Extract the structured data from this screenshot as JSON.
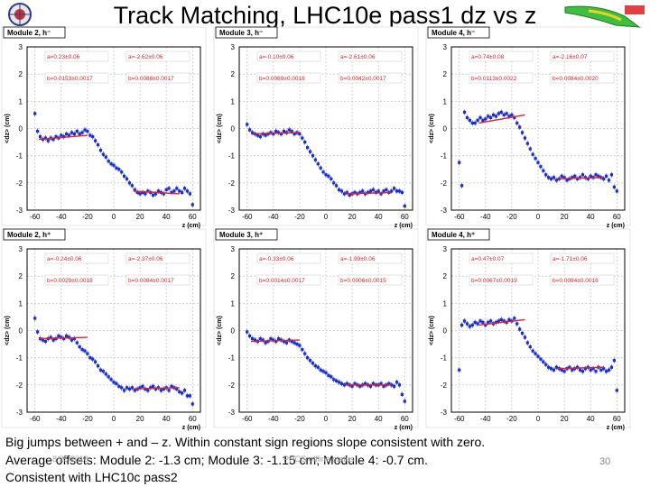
{
  "title": "Track Matching, LHC10e pass1 dz vs z",
  "colors": {
    "markers": "#1a2ecc",
    "fit": "#e0202a",
    "grid": "#c8c8c8",
    "label_bg": "#ffffff"
  },
  "footer": {
    "line1": "Big jumps between + and – z. Within constant sign regions slope consistent with zero.",
    "line2": "Average offsets: Module 2: -1.3 cm; Module 3: -1.15 cm; Module 4: -0.7 cm.",
    "line3": "Consistent with LHC10c pass2",
    "date": "8/25/2010",
    "conference": "PHOS offline status",
    "page": "30"
  },
  "chart_data": [
    {
      "type": "scatter",
      "title": "Module 2, h⁻",
      "xlabel": "z (cm)",
      "ylabel": "<dz> (cm)",
      "xlim": [
        -66,
        66
      ],
      "ylim": [
        -3,
        3
      ],
      "xticks": [
        "-60",
        "-40",
        "-20",
        "0",
        "20",
        "40",
        "60"
      ],
      "yticks": [
        "-3",
        "-2",
        "-1",
        "0",
        "1",
        "2",
        "3"
      ],
      "fit_params": [
        "a=0.23±0.06",
        "a=-2.62±0.06",
        "b=0.0153±0.0017",
        "b=0.0088±0.0017"
      ],
      "fit_lines": [
        {
          "x": [
            -57,
            -20
          ],
          "y": [
            -0.4,
            -0.25
          ]
        },
        {
          "x": [
            15,
            50
          ],
          "y": [
            -2.3,
            -2.4
          ]
        }
      ],
      "series": [
        {
          "name": "data",
          "x": [
            -60,
            -58,
            -56,
            -54,
            -52,
            -50,
            -48,
            -46,
            -44,
            -42,
            -40,
            -38,
            -36,
            -34,
            -32,
            -30,
            -28,
            -26,
            -24,
            -22,
            -20,
            -18,
            -16,
            -14,
            -12,
            -10,
            -8,
            -6,
            -4,
            -2,
            0,
            2,
            4,
            6,
            8,
            10,
            12,
            14,
            16,
            18,
            20,
            22,
            24,
            26,
            28,
            30,
            32,
            34,
            36,
            38,
            40,
            42,
            44,
            46,
            48,
            50,
            52,
            54,
            56,
            58,
            60
          ],
          "y": [
            0.55,
            -0.1,
            -0.3,
            -0.4,
            -0.35,
            -0.45,
            -0.35,
            -0.4,
            -0.3,
            -0.35,
            -0.25,
            -0.3,
            -0.2,
            -0.25,
            -0.15,
            -0.2,
            -0.1,
            -0.2,
            -0.15,
            -0.05,
            -0.1,
            -0.25,
            -0.3,
            -0.45,
            -0.6,
            -0.8,
            -0.95,
            -1.05,
            -1.2,
            -1.3,
            -1.35,
            -1.45,
            -1.5,
            -1.6,
            -1.75,
            -1.85,
            -2.0,
            -2.1,
            -2.25,
            -2.35,
            -2.4,
            -2.35,
            -2.4,
            -2.3,
            -2.35,
            -2.45,
            -2.4,
            -2.3,
            -2.35,
            -2.4,
            -2.25,
            -2.2,
            -2.35,
            -2.3,
            -2.2,
            -2.3,
            -2.35,
            -2.2,
            -2.3,
            -2.4,
            -2.8
          ]
        }
      ]
    },
    {
      "type": "scatter",
      "title": "Module 3, h⁻",
      "xlabel": "z (cm)",
      "ylabel": "<dz> (cm)",
      "xlim": [
        -66,
        66
      ],
      "ylim": [
        -3,
        3
      ],
      "xticks": [
        "-60",
        "-40",
        "-20",
        "0",
        "20",
        "40",
        "60"
      ],
      "yticks": [
        "-3",
        "-2",
        "-1",
        "0",
        "1",
        "2",
        "3"
      ],
      "fit_params": [
        "a=-0.10±0.06",
        "a=-2.61±0.06",
        "b=0.0069±0.0018",
        "b=0.0042±0.0017"
      ],
      "fit_lines": [
        {
          "x": [
            -57,
            -20
          ],
          "y": [
            -0.2,
            -0.15
          ]
        },
        {
          "x": [
            15,
            50
          ],
          "y": [
            -2.4,
            -2.35
          ]
        }
      ],
      "series": [
        {
          "name": "data",
          "x": [
            -60,
            -58,
            -56,
            -54,
            -52,
            -50,
            -48,
            -46,
            -44,
            -42,
            -40,
            -38,
            -36,
            -34,
            -32,
            -30,
            -28,
            -26,
            -24,
            -22,
            -20,
            -18,
            -16,
            -14,
            -12,
            -10,
            -8,
            -6,
            -4,
            -2,
            0,
            2,
            4,
            6,
            8,
            10,
            12,
            14,
            16,
            18,
            20,
            22,
            24,
            26,
            28,
            30,
            32,
            34,
            36,
            38,
            40,
            42,
            44,
            46,
            48,
            50,
            52,
            54,
            56,
            58,
            60
          ],
          "y": [
            0.15,
            -0.05,
            -0.15,
            -0.2,
            -0.25,
            -0.3,
            -0.2,
            -0.25,
            -0.2,
            -0.15,
            -0.2,
            -0.1,
            -0.15,
            -0.2,
            -0.1,
            -0.15,
            -0.05,
            -0.1,
            -0.2,
            -0.15,
            -0.2,
            -0.35,
            -0.5,
            -0.7,
            -0.85,
            -1.0,
            -1.15,
            -1.3,
            -1.45,
            -1.6,
            -1.7,
            -1.75,
            -1.85,
            -2.0,
            -2.1,
            -2.25,
            -2.3,
            -2.4,
            -2.35,
            -2.45,
            -2.4,
            -2.35,
            -2.4,
            -2.35,
            -2.3,
            -2.4,
            -2.35,
            -2.3,
            -2.25,
            -2.35,
            -2.3,
            -2.4,
            -2.3,
            -2.25,
            -2.35,
            -2.3,
            -2.2,
            -2.3,
            -2.3,
            -2.35,
            -2.85
          ]
        }
      ]
    },
    {
      "type": "scatter",
      "title": "Module 4, h⁻",
      "xlabel": "z (cm)",
      "ylabel": "<dz> (cm)",
      "xlim": [
        -66,
        66
      ],
      "ylim": [
        -3,
        3
      ],
      "xticks": [
        "-60",
        "-40",
        "-20",
        "0",
        "20",
        "40",
        "60"
      ],
      "yticks": [
        "-3",
        "-2",
        "-1",
        "0",
        "1",
        "2",
        "3"
      ],
      "fit_params": [
        "a=0.74±0.08",
        "a=-2.16±0.07",
        "b=0.0113±0.0022",
        "b=0.0084±0.0020"
      ],
      "fit_lines": [
        {
          "x": [
            -45,
            -10
          ],
          "y": [
            0.2,
            0.5
          ]
        },
        {
          "x": [
            15,
            50
          ],
          "y": [
            -1.85,
            -1.8
          ]
        }
      ],
      "series": [
        {
          "name": "data",
          "x": [
            -60,
            -58,
            -56,
            -54,
            -52,
            -50,
            -48,
            -46,
            -44,
            -42,
            -40,
            -38,
            -36,
            -34,
            -32,
            -30,
            -28,
            -26,
            -24,
            -22,
            -20,
            -18,
            -16,
            -14,
            -12,
            -10,
            -8,
            -6,
            -4,
            -2,
            0,
            2,
            4,
            6,
            8,
            10,
            12,
            14,
            16,
            18,
            20,
            22,
            24,
            26,
            28,
            30,
            32,
            34,
            36,
            38,
            40,
            42,
            44,
            46,
            48,
            50,
            52,
            54,
            56,
            58,
            60
          ],
          "y": [
            -1.25,
            -2.1,
            0.6,
            0.4,
            0.3,
            0.2,
            0.2,
            0.3,
            0.4,
            0.3,
            0.35,
            0.45,
            0.4,
            0.5,
            0.45,
            0.55,
            0.6,
            0.5,
            0.55,
            0.45,
            0.5,
            0.4,
            0.2,
            0.05,
            -0.15,
            -0.35,
            -0.55,
            -0.75,
            -0.95,
            -1.1,
            -1.25,
            -1.4,
            -1.55,
            -1.7,
            -1.8,
            -1.85,
            -1.8,
            -1.9,
            -1.85,
            -1.75,
            -1.8,
            -1.9,
            -1.85,
            -1.8,
            -1.75,
            -1.85,
            -1.8,
            -1.7,
            -1.8,
            -1.85,
            -1.75,
            -1.8,
            -1.7,
            -1.75,
            -1.8,
            -1.85,
            -1.75,
            -1.9,
            -1.7,
            -2.15,
            -2.3
          ]
        }
      ]
    },
    {
      "type": "scatter",
      "title": "Module 2, h⁺",
      "xlabel": "z (cm)",
      "ylabel": "<dz> (cm)",
      "xlim": [
        -66,
        66
      ],
      "ylim": [
        -3,
        3
      ],
      "xticks": [
        "-60",
        "-40",
        "-20",
        "0",
        "20",
        "40",
        "60"
      ],
      "yticks": [
        "-3",
        "-2",
        "-1",
        "0",
        "1",
        "2",
        "3"
      ],
      "fit_params": [
        "a=-0.24±0.06",
        "a=-2.37±0.06",
        "b=0.0029±0.0018",
        "b=0.0084±0.0017"
      ],
      "fit_lines": [
        {
          "x": [
            -57,
            -20
          ],
          "y": [
            -0.3,
            -0.25
          ]
        },
        {
          "x": [
            15,
            50
          ],
          "y": [
            -2.15,
            -2.1
          ]
        }
      ],
      "series": [
        {
          "name": "data",
          "x": [
            -60,
            -58,
            -56,
            -54,
            -52,
            -50,
            -48,
            -46,
            -44,
            -42,
            -40,
            -38,
            -36,
            -34,
            -32,
            -30,
            -28,
            -26,
            -24,
            -22,
            -20,
            -18,
            -16,
            -14,
            -12,
            -10,
            -8,
            -6,
            -4,
            -2,
            0,
            2,
            4,
            6,
            8,
            10,
            12,
            14,
            16,
            18,
            20,
            22,
            24,
            26,
            28,
            30,
            32,
            34,
            36,
            38,
            40,
            42,
            44,
            46,
            48,
            50,
            52,
            54,
            56,
            58,
            60
          ],
          "y": [
            0.45,
            -0.05,
            -0.3,
            -0.35,
            -0.4,
            -0.3,
            -0.25,
            -0.35,
            -0.3,
            -0.2,
            -0.25,
            -0.3,
            -0.2,
            -0.25,
            -0.35,
            -0.3,
            -0.45,
            -0.6,
            -0.7,
            -0.75,
            -0.85,
            -1.0,
            -1.05,
            -1.15,
            -1.3,
            -1.45,
            -1.5,
            -1.6,
            -1.7,
            -1.8,
            -1.9,
            -1.95,
            -2.05,
            -2.1,
            -2.2,
            -2.1,
            -2.15,
            -2.1,
            -2.2,
            -2.15,
            -2.1,
            -2.05,
            -2.15,
            -2.2,
            -2.1,
            -2.05,
            -2.15,
            -2.1,
            -2.2,
            -2.15,
            -2.1,
            -2.2,
            -2.05,
            -2.1,
            -2.15,
            -2.25,
            -2.3,
            -2.2,
            -2.4,
            -2.4,
            -2.7
          ]
        }
      ]
    },
    {
      "type": "scatter",
      "title": "Module 3, h⁺",
      "xlabel": "z (cm)",
      "ylabel": "<dz> (cm)",
      "xlim": [
        -66,
        66
      ],
      "ylim": [
        -3,
        3
      ],
      "xticks": [
        "-60",
        "-40",
        "-20",
        "0",
        "20",
        "40",
        "60"
      ],
      "yticks": [
        "-3",
        "-2",
        "-1",
        "0",
        "1",
        "2",
        "3"
      ],
      "fit_params": [
        "a=-0.33±0.06",
        "a=-1.99±0.06",
        "b=0.0014±0.0017",
        "b=0.0006±0.0015"
      ],
      "fit_lines": [
        {
          "x": [
            -57,
            -20
          ],
          "y": [
            -0.4,
            -0.35
          ]
        },
        {
          "x": [
            15,
            50
          ],
          "y": [
            -2.0,
            -2.0
          ]
        }
      ],
      "series": [
        {
          "name": "data",
          "x": [
            -60,
            -58,
            -56,
            -54,
            -52,
            -50,
            -48,
            -46,
            -44,
            -42,
            -40,
            -38,
            -36,
            -34,
            -32,
            -30,
            -28,
            -26,
            -24,
            -22,
            -20,
            -18,
            -16,
            -14,
            -12,
            -10,
            -8,
            -6,
            -4,
            -2,
            0,
            2,
            4,
            6,
            8,
            10,
            12,
            14,
            16,
            18,
            20,
            22,
            24,
            26,
            28,
            30,
            32,
            34,
            36,
            38,
            40,
            42,
            44,
            46,
            48,
            50,
            52,
            54,
            56,
            58,
            60
          ],
          "y": [
            -0.05,
            -0.2,
            -0.3,
            -0.35,
            -0.4,
            -0.3,
            -0.35,
            -0.45,
            -0.4,
            -0.3,
            -0.35,
            -0.4,
            -0.3,
            -0.35,
            -0.4,
            -0.45,
            -0.35,
            -0.4,
            -0.45,
            -0.5,
            -0.55,
            -0.7,
            -0.85,
            -1.0,
            -1.1,
            -1.2,
            -1.3,
            -1.35,
            -1.45,
            -1.5,
            -1.55,
            -1.65,
            -1.7,
            -1.8,
            -1.85,
            -1.9,
            -1.95,
            -2.0,
            -1.95,
            -2.0,
            -2.05,
            -1.95,
            -2.0,
            -2.05,
            -2.0,
            -1.95,
            -2.0,
            -2.05,
            -1.95,
            -2.0,
            -2.0,
            -1.95,
            -2.05,
            -2.0,
            -1.95,
            -2.0,
            -2.05,
            -1.9,
            -2.0,
            -2.35,
            -2.6
          ]
        }
      ]
    },
    {
      "type": "scatter",
      "title": "Module 4, h⁺",
      "xlabel": "z (cm)",
      "ylabel": "<dz> (cm)",
      "xlim": [
        -66,
        66
      ],
      "ylim": [
        -3,
        3
      ],
      "xticks": [
        "-60",
        "-40",
        "-20",
        "0",
        "20",
        "40",
        "60"
      ],
      "yticks": [
        "-3",
        "-2",
        "-1",
        "0",
        "1",
        "2",
        "3"
      ],
      "fit_params": [
        "a=0.47±0.07",
        "a=-1.71±0.06",
        "b=0.0067±0.0019",
        "b=0.0084±0.0016"
      ],
      "fit_lines": [
        {
          "x": [
            -45,
            -10
          ],
          "y": [
            0.2,
            0.4
          ]
        },
        {
          "x": [
            15,
            50
          ],
          "y": [
            -1.4,
            -1.35
          ]
        }
      ],
      "series": [
        {
          "name": "data",
          "x": [
            -60,
            -58,
            -56,
            -54,
            -52,
            -50,
            -48,
            -46,
            -44,
            -42,
            -40,
            -38,
            -36,
            -34,
            -32,
            -30,
            -28,
            -26,
            -24,
            -22,
            -20,
            -18,
            -16,
            -14,
            -12,
            -10,
            -8,
            -6,
            -4,
            -2,
            0,
            2,
            4,
            6,
            8,
            10,
            12,
            14,
            16,
            18,
            20,
            22,
            24,
            26,
            28,
            30,
            32,
            34,
            36,
            38,
            40,
            42,
            44,
            46,
            48,
            50,
            52,
            54,
            56,
            58,
            60
          ],
          "y": [
            -1.45,
            0.2,
            0.35,
            0.25,
            0.15,
            0.2,
            0.3,
            0.25,
            0.35,
            0.3,
            0.2,
            0.3,
            0.35,
            0.25,
            0.3,
            0.35,
            0.4,
            0.35,
            0.3,
            0.4,
            0.35,
            0.45,
            0.25,
            0.05,
            -0.1,
            -0.25,
            -0.45,
            -0.6,
            -0.75,
            -0.85,
            -0.95,
            -1.05,
            -1.15,
            -1.25,
            -1.35,
            -1.4,
            -1.45,
            -1.35,
            -1.4,
            -1.45,
            -1.5,
            -1.4,
            -1.35,
            -1.45,
            -1.4,
            -1.35,
            -1.45,
            -1.5,
            -1.4,
            -1.35,
            -1.45,
            -1.4,
            -1.5,
            -1.35,
            -1.45,
            -1.4,
            -1.5,
            -1.45,
            -1.35,
            -1.1,
            -2.2
          ]
        }
      ]
    }
  ]
}
